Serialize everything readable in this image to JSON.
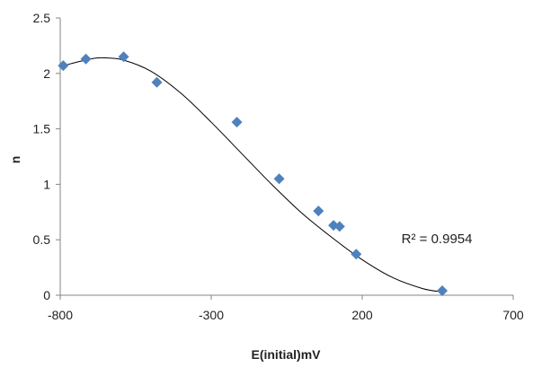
{
  "chart_data": {
    "type": "scatter",
    "xlabel": "E(initial)mV",
    "ylabel": "n",
    "xlim": [
      -800,
      700
    ],
    "ylim": [
      0,
      2.5
    ],
    "x_ticks": [
      -800,
      -300,
      200,
      700
    ],
    "y_ticks": [
      0,
      0.5,
      1,
      1.5,
      2,
      2.5
    ],
    "x_tick_labels": [
      "-800",
      "-300",
      "200",
      "700"
    ],
    "y_tick_labels": [
      "0",
      "0.5",
      "1",
      "1.5",
      "2",
      "2.5"
    ],
    "grid": false,
    "legend": "none",
    "marker": "diamond",
    "marker_color": "#4F81BD",
    "trendline_color": "#000000",
    "series": [
      {
        "points": [
          {
            "x": -790,
            "y": 2.07
          },
          {
            "x": -715,
            "y": 2.13
          },
          {
            "x": -590,
            "y": 2.15
          },
          {
            "x": -480,
            "y": 1.92
          },
          {
            "x": -215,
            "y": 1.56
          },
          {
            "x": -75,
            "y": 1.05
          },
          {
            "x": 55,
            "y": 0.76
          },
          {
            "x": 105,
            "y": 0.63
          },
          {
            "x": 125,
            "y": 0.62
          },
          {
            "x": 180,
            "y": 0.37
          },
          {
            "x": 465,
            "y": 0.04
          }
        ]
      }
    ],
    "trendline": {
      "points": [
        {
          "x": -790,
          "y": 2.07
        },
        {
          "x": -700,
          "y": 2.13
        },
        {
          "x": -650,
          "y": 2.14
        },
        {
          "x": -590,
          "y": 2.12
        },
        {
          "x": -500,
          "y": 2.02
        },
        {
          "x": -400,
          "y": 1.82
        },
        {
          "x": -300,
          "y": 1.56
        },
        {
          "x": -200,
          "y": 1.28
        },
        {
          "x": -100,
          "y": 1.0
        },
        {
          "x": 0,
          "y": 0.74
        },
        {
          "x": 100,
          "y": 0.52
        },
        {
          "x": 200,
          "y": 0.32
        },
        {
          "x": 300,
          "y": 0.16
        },
        {
          "x": 400,
          "y": 0.06
        },
        {
          "x": 465,
          "y": 0.03
        }
      ]
    },
    "annotations": [
      {
        "text": "R² = 0.9954",
        "x": 330,
        "y": 0.47
      }
    ]
  }
}
